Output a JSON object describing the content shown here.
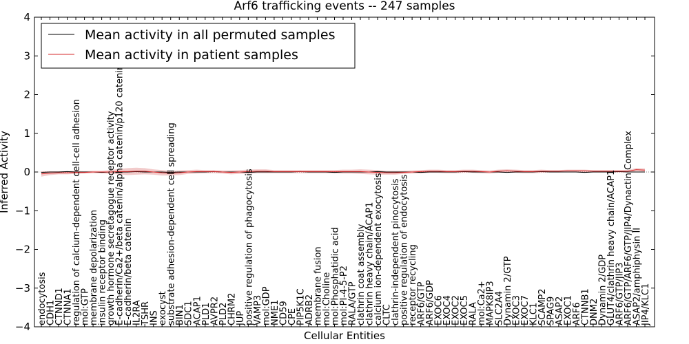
{
  "chart_data": {
    "type": "line",
    "title": "Arf6 trafficking events -- 247 samples",
    "xlabel": "Cellular Entities",
    "ylabel": "Inferred Activity",
    "ylim": [
      -4,
      4
    ],
    "yticks": [
      -4,
      -3,
      -2,
      -1,
      0,
      1,
      2,
      3,
      4
    ],
    "ytick_labels": [
      "−4",
      "−3",
      "−2",
      "−1",
      "0",
      "1",
      "2",
      "3",
      "4"
    ],
    "grid": false,
    "legend_position": "top-left",
    "colors": {
      "permuted": "#000000",
      "patient": "#d62728",
      "band": "#e8a0a0"
    },
    "categories": [
      "endocytosis",
      "CDH1",
      "CTNND1",
      "CTNNA1",
      "regulation of calcium-dependent cell-cell adhesion",
      "mol:GTP",
      "membrane depolarization",
      "insulin receptor binding",
      "growth hormone secretagogue receptor activity",
      "E-cadherin/Ca2+/beta catenin/alpha catenin/p120 catenin",
      "E-cadherin/beta catenin",
      "IL2RA",
      "TSHR",
      "INS",
      "exocyst",
      "substrate adhesion-dependent cell spreading",
      "BIN1",
      "SDC1",
      "ACAP1",
      "PLD1",
      "AVPR2",
      "PLD2",
      "CHRM2",
      "JUP",
      "positive regulation of phagocytosis",
      "VAMP3",
      "mol:GDP",
      "NME1",
      "CD59",
      "CPE",
      "PIP5K1C",
      "ADRB2",
      "membrane fusion",
      "mol:Choline",
      "mol:Phosphatidic acid",
      "mol:PI-4-5-P2",
      "RALA/GTP",
      "clathrin coat assembly",
      "clathrin heavy chain/ACAP1",
      "calcium ion-dependent exocytosis",
      "CLTC",
      "clathrin-independent pinocytosis",
      "positive regulation of endocytosis",
      "receptor recycling",
      "ARF6/GTP",
      "ARF6/GDP",
      "EXOC6",
      "EXOC4",
      "EXOC2",
      "EXOC5",
      "RALA",
      "mol:Ca2+",
      "MAPK8IP3",
      "SLC2A4",
      "Dynamin 2/GTP",
      "EXOC3",
      "EXOC7",
      "KLC1",
      "SCAMP2",
      "SPAG9",
      "ASAP2",
      "EXOC1",
      "ARF6",
      "CTNNB1",
      "DNM2",
      "Dynamin 2/GDP",
      "GLUT4/clathrin heavy chain/ACAP1",
      "ARF6/GTP/JIP3",
      "ARF6/GTP/ARF6/GTP/JIP4/Dynactin Complex",
      "ASAP2/amphiphysin II",
      "JIP4/KLC1"
    ],
    "series": [
      {
        "name": "Mean activity in all permuted samples",
        "values": [
          -0.01,
          0.0,
          0.0,
          0.01,
          0.0,
          0.0,
          0.0,
          -0.01,
          0.0,
          0.0,
          0.0,
          0.01,
          0.0,
          0.0,
          0.0,
          -0.01,
          0.0,
          0.0,
          0.0,
          0.0,
          0.01,
          0.0,
          0.0,
          0.0,
          -0.01,
          0.0,
          0.0,
          0.0,
          0.0,
          0.0,
          0.01,
          0.0,
          0.0,
          0.0,
          -0.01,
          0.0,
          0.0,
          0.0,
          0.0,
          0.01,
          0.0,
          0.0,
          0.0,
          0.0,
          -0.01,
          0.0,
          0.0,
          0.0,
          0.0,
          0.01,
          0.0,
          0.0,
          0.0,
          0.0,
          -0.01,
          0.0,
          0.0,
          0.0,
          0.01,
          0.0,
          0.0,
          0.0,
          0.0,
          -0.01,
          0.0,
          0.0,
          0.0,
          0.01,
          0.0,
          0.0,
          0.0
        ]
      },
      {
        "name": "Mean activity in patient samples",
        "values": [
          -0.05,
          -0.03,
          -0.02,
          -0.02,
          -0.01,
          -0.01,
          0.0,
          0.0,
          0.0,
          0.01,
          0.01,
          0.02,
          0.02,
          0.0,
          -0.02,
          -0.03,
          -0.02,
          0.0,
          0.01,
          0.01,
          0.01,
          0.0,
          -0.01,
          0.0,
          0.01,
          0.02,
          0.02,
          0.01,
          0.01,
          0.01,
          0.01,
          0.01,
          0.01,
          0.01,
          0.01,
          0.01,
          0.01,
          0.01,
          0.0,
          -0.01,
          -0.02,
          -0.02,
          -0.01,
          0.0,
          0.01,
          0.02,
          0.02,
          0.01,
          0.01,
          0.02,
          0.02,
          0.01,
          0.0,
          0.02,
          0.03,
          0.02,
          0.01,
          0.01,
          0.02,
          0.02,
          0.02,
          0.03,
          0.03,
          0.03,
          0.02,
          0.02,
          0.02,
          0.02,
          0.02,
          0.06,
          0.05
        ]
      }
    ],
    "band_halfwidth": [
      0.07,
      0.05,
      0.04,
      0.04,
      0.04,
      0.03,
      0.03,
      0.03,
      0.05,
      0.07,
      0.09,
      0.09,
      0.08,
      0.07,
      0.07,
      0.06,
      0.06,
      0.05,
      0.05,
      0.04,
      0.04,
      0.04,
      0.05,
      0.05,
      0.05,
      0.05,
      0.05,
      0.04,
      0.04,
      0.04,
      0.04,
      0.04,
      0.04,
      0.04,
      0.04,
      0.05,
      0.05,
      0.06,
      0.06,
      0.06,
      0.05,
      0.05,
      0.04,
      0.04,
      0.04,
      0.04,
      0.04,
      0.04,
      0.04,
      0.04,
      0.04,
      0.04,
      0.04,
      0.04,
      0.04,
      0.04,
      0.04,
      0.04,
      0.04,
      0.03,
      0.03,
      0.03,
      0.03,
      0.03,
      0.03,
      0.03,
      0.03,
      0.03,
      0.03,
      0.04,
      0.04
    ]
  }
}
